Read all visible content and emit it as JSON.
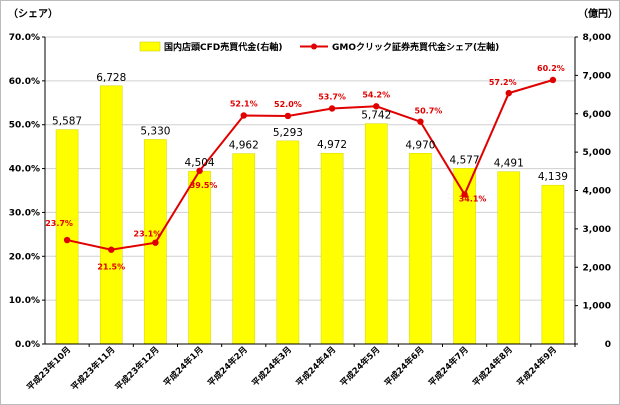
{
  "chart_data": {
    "type": "bar",
    "left_unit": "（シェア）",
    "right_unit": "（億円）",
    "categories": [
      "平成23年10月",
      "平成23年11月",
      "平成23年12月",
      "平成24年1月",
      "平成24年2月",
      "平成24年3月",
      "平成24年4月",
      "平成24年5月",
      "平成24年6月",
      "平成24年7月",
      "平成24年8月",
      "平成24年9月"
    ],
    "series": [
      {
        "name": "国内店頭CFD売買代金(右軸)",
        "type": "bar",
        "axis": "right",
        "color": "#ffff00",
        "values": [
          5587,
          6728,
          5330,
          4504,
          4962,
          5293,
          4972,
          5742,
          4970,
          4577,
          4491,
          4139
        ],
        "labels": [
          "5,587",
          "6,728",
          "5,330",
          "4,504",
          "4,962",
          "5,293",
          "4,972",
          "5,742",
          "4,970",
          "4,577",
          "4,491",
          "4,139"
        ]
      },
      {
        "name": "GMOクリック証券売買代金シェア(左軸)",
        "type": "line",
        "axis": "left",
        "color": "#e00000",
        "values": [
          23.7,
          21.5,
          23.1,
          39.5,
          52.1,
          52.0,
          53.7,
          54.2,
          50.7,
          34.1,
          57.2,
          60.2
        ],
        "labels": [
          "23.7%",
          "21.5%",
          "23.1%",
          "39.5%",
          "52.1%",
          "52.0%",
          "53.7%",
          "54.2%",
          "50.7%",
          "34.1%",
          "57.2%",
          "60.2%"
        ]
      }
    ],
    "left_axis": {
      "ylim": [
        0,
        70
      ],
      "ticks": [
        "0.0%",
        "10.0%",
        "20.0%",
        "30.0%",
        "40.0%",
        "50.0%",
        "60.0%",
        "70.0%"
      ]
    },
    "right_axis": {
      "ylim": [
        0,
        8000
      ],
      "ticks": [
        "0",
        "1,000",
        "2,000",
        "3,000",
        "4,000",
        "5,000",
        "6,000",
        "7,000",
        "8,000"
      ]
    },
    "grid": true,
    "legend": "top"
  }
}
